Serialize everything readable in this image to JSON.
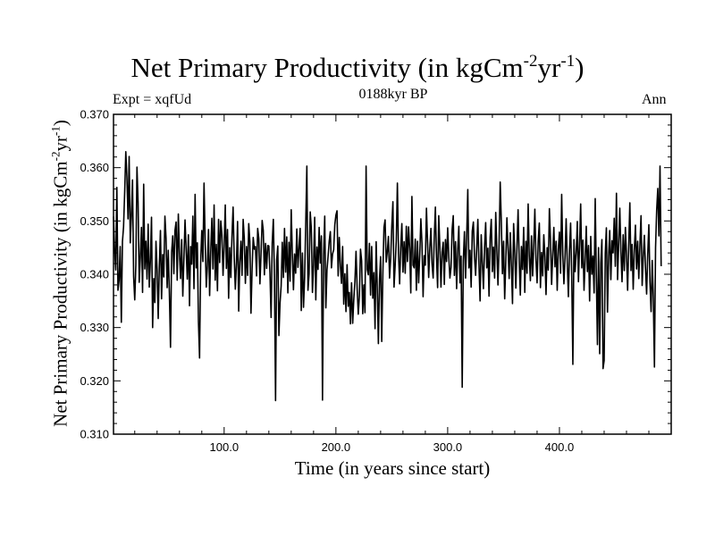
{
  "header": {
    "title_main": "Net Primary Productivity (in kgCm",
    "title_exp1": "-2",
    "title_mid": "yr",
    "title_exp2": "-1",
    "title_end": ")",
    "experiment": "Expt = xqfUd",
    "period": "0188kyr BP",
    "season": "Ann"
  },
  "chart_data": {
    "type": "line",
    "title": "Net Primary Productivity (in kgCm-2yr-1)",
    "xlabel": "Time (in years since start)",
    "ylabel": "Net Primary Productivity (in kgCm-2yr-1)",
    "ylabel_parts": {
      "main": "Net Primary Productivity (in kgCm",
      "exp1": "-2",
      "mid": "yr",
      "exp2": "-1",
      "end": ")"
    },
    "xlim": [
      1,
      500
    ],
    "ylim": [
      0.31,
      0.37
    ],
    "x_ticks": [
      100,
      200,
      300,
      400
    ],
    "x_tick_labels": [
      "100.0",
      "200.0",
      "300.0",
      "400.0"
    ],
    "y_ticks": [
      0.31,
      0.32,
      0.33,
      0.34,
      0.35,
      0.36,
      0.37
    ],
    "y_tick_labels": [
      "0.310",
      "0.320",
      "0.330",
      "0.340",
      "0.350",
      "0.360",
      "0.370"
    ],
    "x_minor_step": 20,
    "y_minor_step": 0.002,
    "series": [
      {
        "name": "Net Primary Productivity",
        "x_start": 1,
        "x_step": 1,
        "values": [
          0.3508,
          0.3445,
          0.3408,
          0.3563,
          0.337,
          0.3389,
          0.3452,
          0.331,
          0.3461,
          0.3489,
          0.3555,
          0.363,
          0.3582,
          0.3504,
          0.3621,
          0.3459,
          0.351,
          0.3577,
          0.3396,
          0.3352,
          0.3418,
          0.3601,
          0.3534,
          0.3385,
          0.3432,
          0.3488,
          0.3366,
          0.3569,
          0.341,
          0.3462,
          0.3391,
          0.3494,
          0.3376,
          0.3426,
          0.3507,
          0.33,
          0.3392,
          0.3347,
          0.3462,
          0.3408,
          0.3317,
          0.3415,
          0.3482,
          0.3354,
          0.3437,
          0.3395,
          0.3509,
          0.3468,
          0.3375,
          0.3445,
          0.3364,
          0.3263,
          0.3441,
          0.3472,
          0.3401,
          0.3482,
          0.3498,
          0.3389,
          0.3513,
          0.344,
          0.3392,
          0.3465,
          0.3359,
          0.3428,
          0.3502,
          0.3447,
          0.3391,
          0.3474,
          0.3341,
          0.3452,
          0.3419,
          0.3509,
          0.3373,
          0.355,
          0.3412,
          0.3459,
          0.3311,
          0.3243,
          0.3423,
          0.3482,
          0.3424,
          0.3571,
          0.3462,
          0.3376,
          0.3415,
          0.3484,
          0.336,
          0.3442,
          0.3505,
          0.341,
          0.353,
          0.3389,
          0.3456,
          0.3369,
          0.3503,
          0.3422,
          0.35,
          0.3474,
          0.3398,
          0.3452,
          0.353,
          0.3411,
          0.3484,
          0.3355,
          0.345,
          0.3394,
          0.3471,
          0.3526,
          0.3432,
          0.3372,
          0.3421,
          0.3499,
          0.3331,
          0.3423,
          0.3462,
          0.3398,
          0.3503,
          0.3468,
          0.3383,
          0.3452,
          0.3398,
          0.3495,
          0.3462,
          0.3327,
          0.3409,
          0.3469,
          0.3447,
          0.3452,
          0.3397,
          0.3486,
          0.3467,
          0.3382,
          0.3437,
          0.3501,
          0.3482,
          0.3399,
          0.3458,
          0.3411,
          0.3454,
          0.3453,
          0.3402,
          0.3319,
          0.3458,
          0.3503,
          0.3395,
          0.3163,
          0.3427,
          0.3453,
          0.3285,
          0.3346,
          0.3378,
          0.346,
          0.3394,
          0.3486,
          0.3404,
          0.347,
          0.3365,
          0.346,
          0.3387,
          0.3521,
          0.3439,
          0.3371,
          0.3438,
          0.3402,
          0.3485,
          0.3413,
          0.3451,
          0.3486,
          0.3332,
          0.344,
          0.3338,
          0.3394,
          0.3496,
          0.3603,
          0.337,
          0.3401,
          0.3517,
          0.3486,
          0.3366,
          0.3418,
          0.3507,
          0.3352,
          0.3451,
          0.3409,
          0.3488,
          0.3421,
          0.3472,
          0.3164,
          0.3436,
          0.3509,
          0.3337,
          0.3408,
          0.3434,
          0.3462,
          0.348,
          0.3412,
          0.3438,
          0.3446,
          0.3493,
          0.3511,
          0.3519,
          0.3397,
          0.3469,
          0.3417,
          0.3383,
          0.3452,
          0.3344,
          0.3401,
          0.333,
          0.3418,
          0.334,
          0.3366,
          0.3307,
          0.3384,
          0.3308,
          0.3353,
          0.3386,
          0.3443,
          0.3373,
          0.3325,
          0.3359,
          0.3447,
          0.3425,
          0.3326,
          0.338,
          0.3328,
          0.3603,
          0.3409,
          0.3399,
          0.3458,
          0.3361,
          0.3452,
          0.3355,
          0.3403,
          0.3298,
          0.3461,
          0.3374,
          0.327,
          0.3391,
          0.3433,
          0.3274,
          0.3402,
          0.3488,
          0.3502,
          0.3423,
          0.3442,
          0.3471,
          0.3393,
          0.343,
          0.349,
          0.3536,
          0.3376,
          0.3416,
          0.3463,
          0.3571,
          0.3439,
          0.3382,
          0.345,
          0.3495,
          0.3404,
          0.3461,
          0.3402,
          0.349,
          0.3424,
          0.3489,
          0.3448,
          0.3365,
          0.3546,
          0.3417,
          0.3412,
          0.3466,
          0.337,
          0.3462,
          0.3384,
          0.3436,
          0.3504,
          0.3458,
          0.3358,
          0.3435,
          0.3417,
          0.3524,
          0.3461,
          0.3394,
          0.3449,
          0.3486,
          0.342,
          0.3393,
          0.3468,
          0.3526,
          0.3432,
          0.3375,
          0.351,
          0.3451,
          0.3376,
          0.3442,
          0.346,
          0.3381,
          0.3465,
          0.3424,
          0.3487,
          0.3433,
          0.3393,
          0.3413,
          0.3484,
          0.351,
          0.3398,
          0.3461,
          0.3373,
          0.3446,
          0.349,
          0.3384,
          0.3434,
          0.3188,
          0.3426,
          0.348,
          0.3393,
          0.3469,
          0.3559,
          0.3412,
          0.3445,
          0.3376,
          0.3481,
          0.3498,
          0.3433,
          0.3398,
          0.3448,
          0.3503,
          0.3418,
          0.335,
          0.3474,
          0.3422,
          0.3373,
          0.345,
          0.3497,
          0.3412,
          0.3449,
          0.3359,
          0.3469,
          0.3503,
          0.3405,
          0.3451,
          0.3393,
          0.3516,
          0.3446,
          0.338,
          0.3458,
          0.3573,
          0.3498,
          0.3401,
          0.3462,
          0.3354,
          0.3424,
          0.3506,
          0.3449,
          0.3392,
          0.3478,
          0.3418,
          0.3345,
          0.3495,
          0.3442,
          0.3374,
          0.3451,
          0.3521,
          0.3427,
          0.3361,
          0.3452,
          0.3409,
          0.3488,
          0.3366,
          0.3462,
          0.3402,
          0.3532,
          0.3435,
          0.3388,
          0.3472,
          0.3397,
          0.3453,
          0.3522,
          0.3428,
          0.3384,
          0.3463,
          0.3496,
          0.3375,
          0.3441,
          0.3397,
          0.3474,
          0.3433,
          0.3362,
          0.345,
          0.3408,
          0.3523,
          0.3463,
          0.3381,
          0.3436,
          0.3488,
          0.3414,
          0.3462,
          0.337,
          0.3447,
          0.3479,
          0.3402,
          0.355,
          0.3437,
          0.3382,
          0.3431,
          0.3504,
          0.3423,
          0.3358,
          0.3444,
          0.3496,
          0.3398,
          0.3231,
          0.3465,
          0.3405,
          0.344,
          0.3499,
          0.3386,
          0.3454,
          0.3532,
          0.3412,
          0.3464,
          0.337,
          0.3426,
          0.349,
          0.3405,
          0.3454,
          0.335,
          0.3471,
          0.34,
          0.3434,
          0.3365,
          0.3542,
          0.3398,
          0.3268,
          0.345,
          0.3251,
          0.3421,
          0.3465,
          0.3223,
          0.3238,
          0.3439,
          0.3487,
          0.3329,
          0.3434,
          0.3482,
          0.339,
          0.3463,
          0.344,
          0.3505,
          0.3415,
          0.3552,
          0.339,
          0.3456,
          0.3524,
          0.3443,
          0.3386,
          0.3474,
          0.3407,
          0.3488,
          0.3436,
          0.337,
          0.3454,
          0.3534,
          0.3407,
          0.3456,
          0.3372,
          0.3445,
          0.3492,
          0.341,
          0.3462,
          0.3392,
          0.3455,
          0.351,
          0.3379,
          0.3432,
          0.3473,
          0.341,
          0.3363,
          0.3437,
          0.3493,
          0.3385,
          0.333,
          0.3426,
          0.3355,
          0.3226,
          0.345,
          0.352,
          0.3561,
          0.3472,
          0.3603,
          0.3415
        ]
      }
    ],
    "line_color": "#000000"
  }
}
